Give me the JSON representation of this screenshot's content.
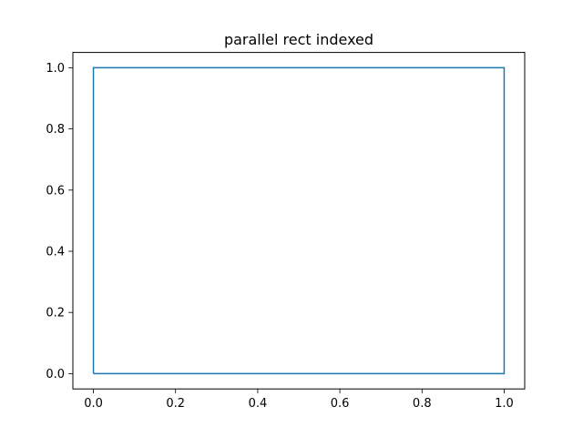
{
  "chart_data": {
    "type": "line",
    "title": "parallel rect indexed",
    "xlabel": "",
    "ylabel": "",
    "xlim": [
      -0.05,
      1.05
    ],
    "ylim": [
      -0.05,
      1.05
    ],
    "x_ticks": [
      0.0,
      0.2,
      0.4,
      0.6,
      0.8,
      1.0
    ],
    "x_tick_labels": [
      "0.0",
      "0.2",
      "0.4",
      "0.6",
      "0.8",
      "1.0"
    ],
    "y_ticks": [
      0.0,
      0.2,
      0.4,
      0.6,
      0.8,
      1.0
    ],
    "y_tick_labels": [
      "0.0",
      "0.2",
      "0.4",
      "0.6",
      "0.8",
      "1.0"
    ],
    "grid": false,
    "legend": "none",
    "series": [
      {
        "color": "#1f77b4",
        "x": [
          0,
          1,
          1,
          0,
          0
        ],
        "y": [
          0,
          0,
          1,
          1,
          0
        ]
      }
    ]
  }
}
